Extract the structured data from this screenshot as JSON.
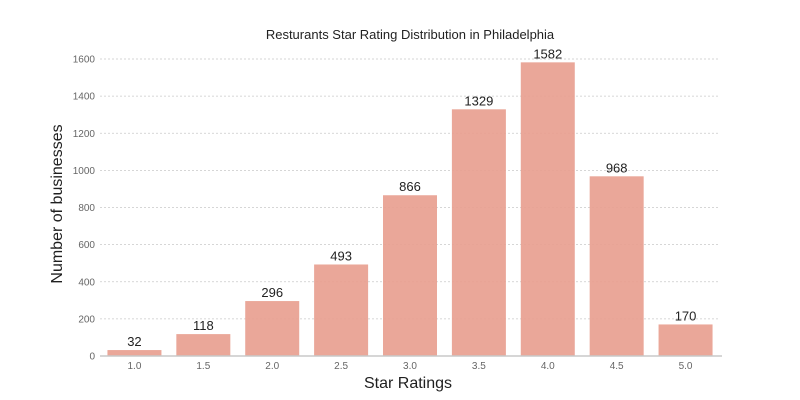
{
  "chart_data": {
    "type": "bar",
    "title": "Resturants Star Rating Distribution in Philadelphia",
    "xlabel": "Star Ratings",
    "ylabel": "Number of businesses",
    "categories": [
      "1.0",
      "1.5",
      "2.0",
      "2.5",
      "3.0",
      "3.5",
      "4.0",
      "4.5",
      "5.0"
    ],
    "values": [
      32,
      118,
      296,
      493,
      866,
      1329,
      1582,
      968,
      170
    ],
    "ylim": [
      0,
      1600
    ],
    "yticks": [
      0,
      200,
      400,
      600,
      800,
      1000,
      1200,
      1400,
      1600
    ],
    "grid": true,
    "bar_color": "#e8a090"
  }
}
